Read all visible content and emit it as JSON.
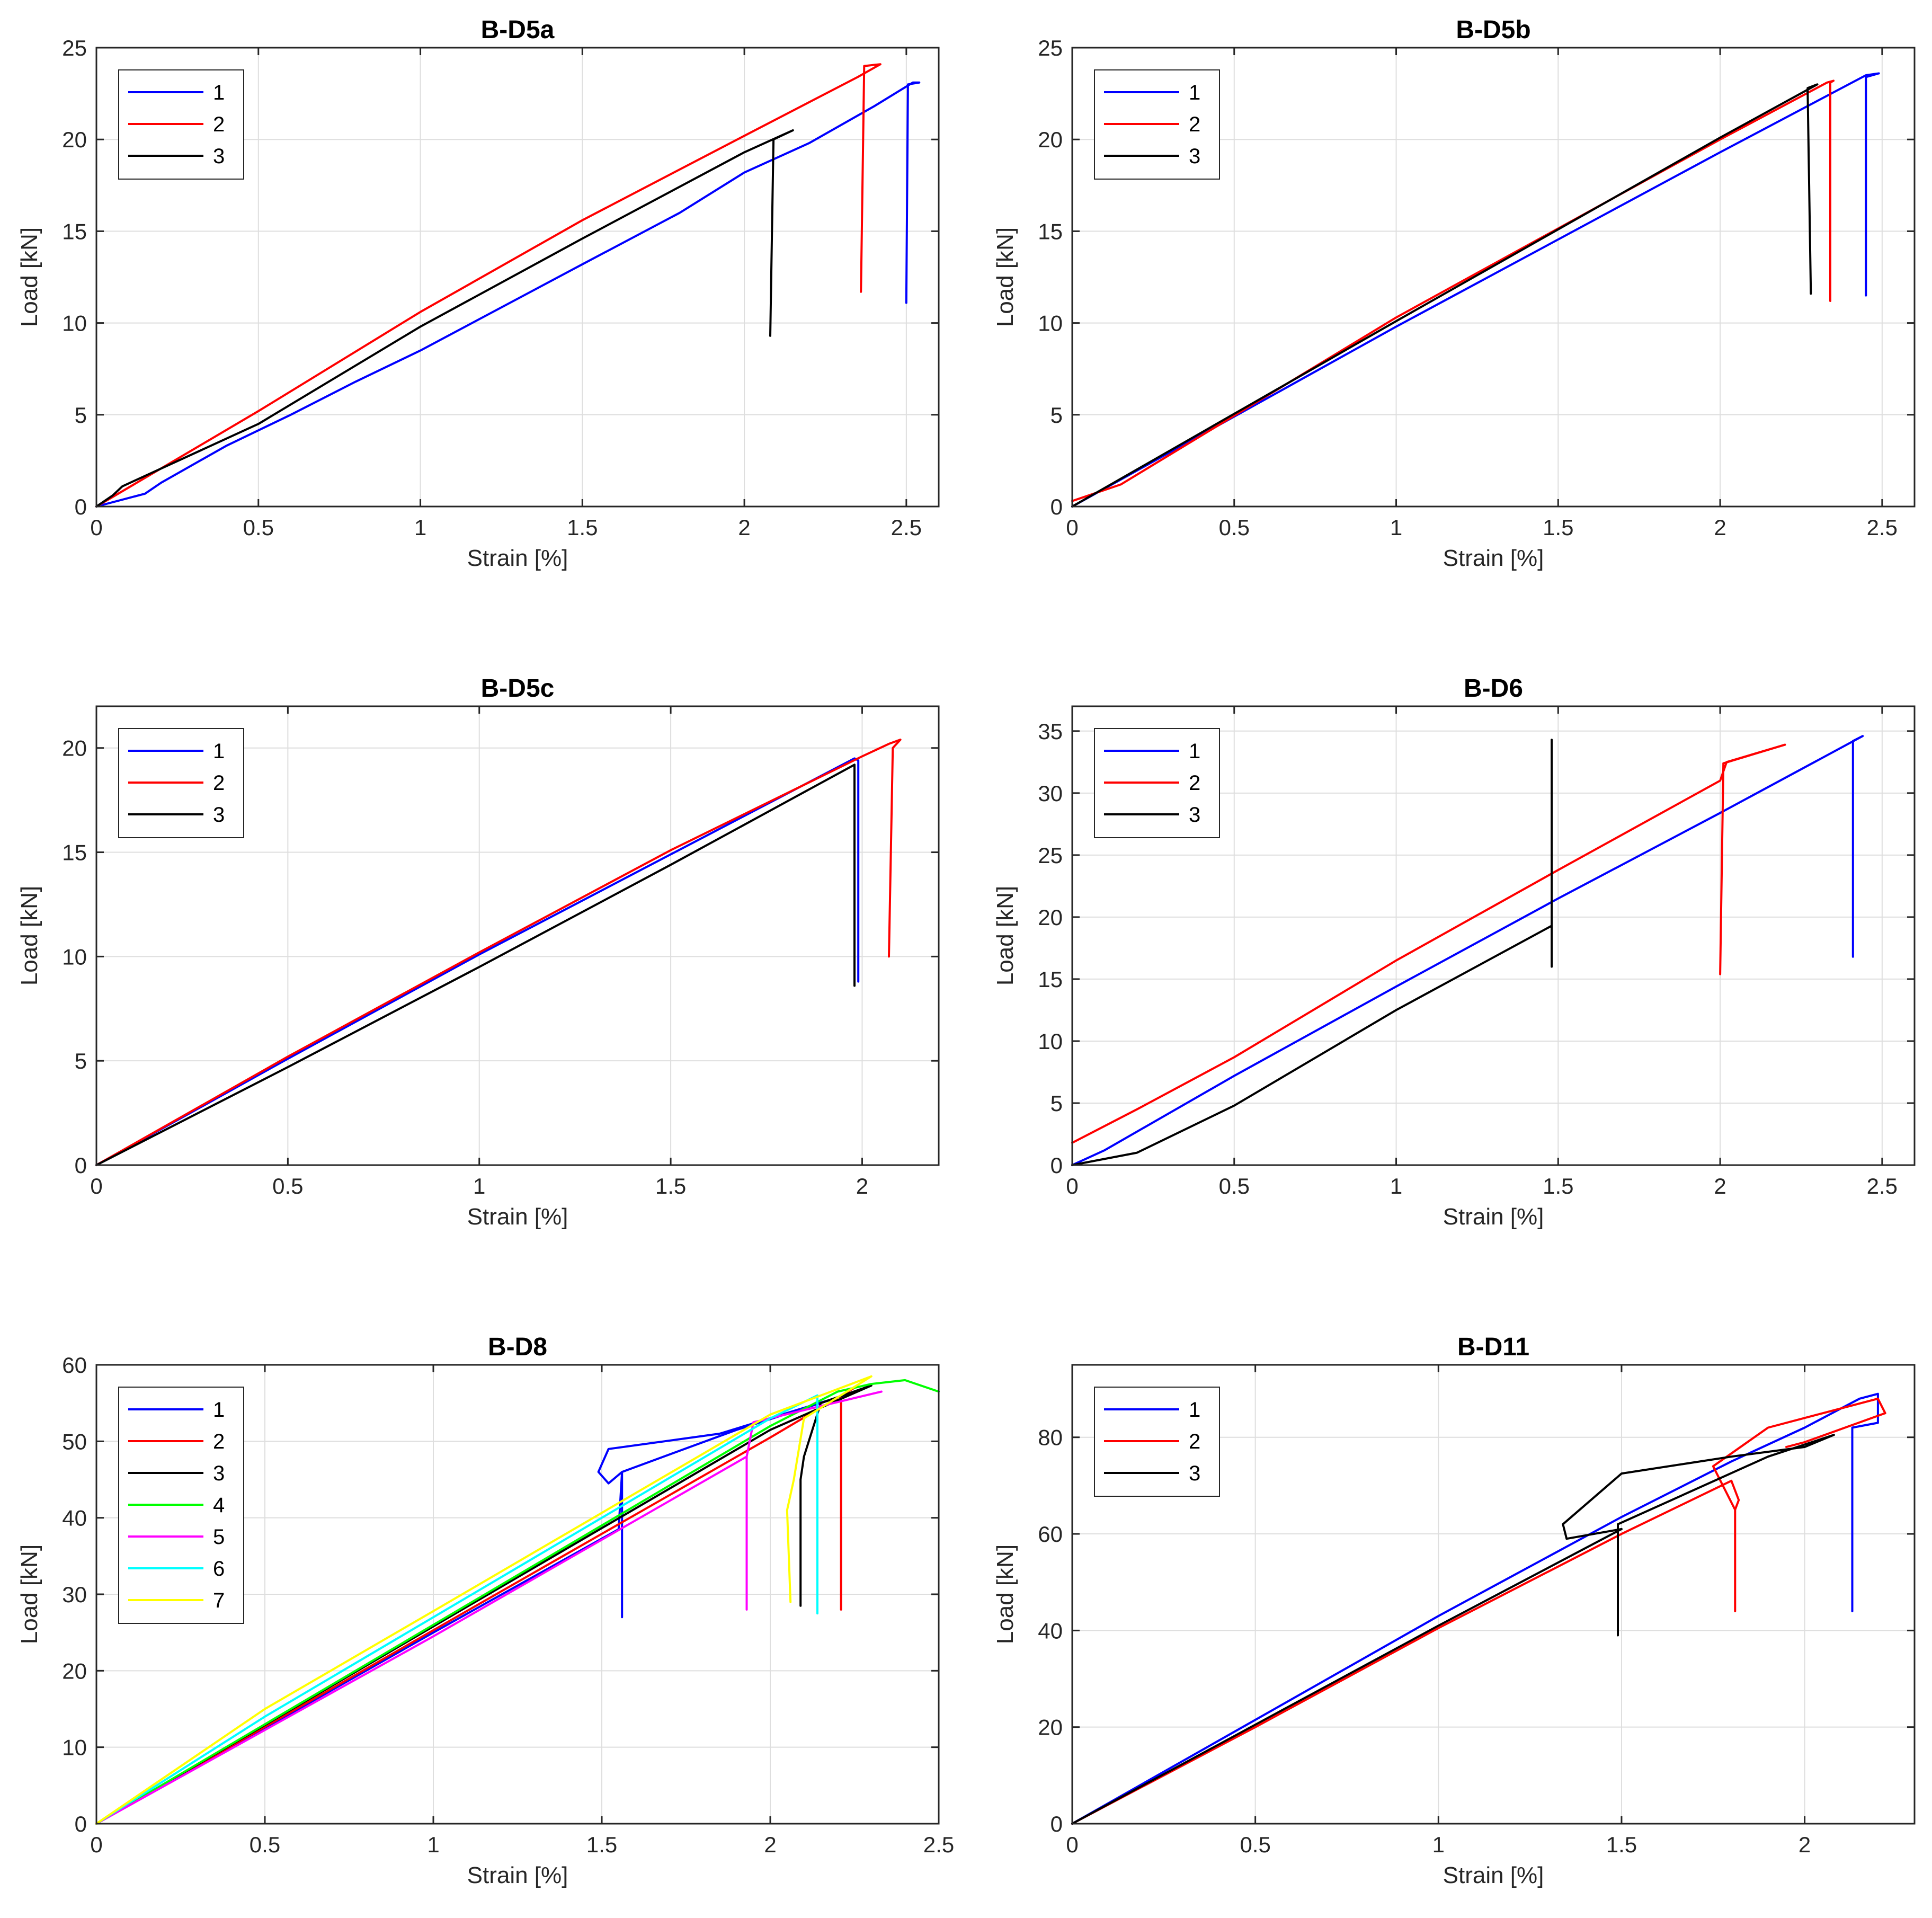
{
  "chart_data": [
    {
      "type": "line",
      "title": "B-D5a",
      "xlabel": "Strain [%]",
      "ylabel": "Load [kN]",
      "xlim": [
        0,
        2.6
      ],
      "ylim": [
        0,
        25
      ],
      "xticks": [
        0,
        0.5,
        1,
        1.5,
        2,
        2.5
      ],
      "xtick_labels": [
        "0",
        "0.5",
        "1",
        "1.5",
        "2",
        "2.5"
      ],
      "yticks": [
        0,
        5,
        10,
        15,
        20,
        25
      ],
      "ytick_labels": [
        "0",
        "5",
        "10",
        "15",
        "20",
        "25"
      ],
      "grid": true,
      "legend": "top-left",
      "series": [
        {
          "name": "1",
          "color": "#0000ff",
          "points": [
            [
              0,
              0
            ],
            [
              0.15,
              0.7
            ],
            [
              0.2,
              1.3
            ],
            [
              0.4,
              3.3
            ],
            [
              0.6,
              5
            ],
            [
              0.8,
              6.8
            ],
            [
              1,
              8.5
            ],
            [
              1.5,
              13.2
            ],
            [
              1.8,
              16
            ],
            [
              2.0,
              18.2
            ],
            [
              2.2,
              19.8
            ],
            [
              2.4,
              21.8
            ],
            [
              2.52,
              23.1
            ],
            [
              2.54,
              23.1
            ],
            [
              2.505,
              23
            ],
            [
              2.5,
              11.1
            ]
          ]
        },
        {
          "name": "2",
          "color": "#ff0000",
          "points": [
            [
              0,
              0
            ],
            [
              0.5,
              5.2
            ],
            [
              1,
              10.6
            ],
            [
              1.5,
              15.6
            ],
            [
              2,
              20.2
            ],
            [
              2.35,
              23.4
            ],
            [
              2.42,
              24.1
            ],
            [
              2.37,
              24
            ],
            [
              2.36,
              11.7
            ]
          ]
        },
        {
          "name": "3",
          "color": "#000000",
          "points": [
            [
              0,
              0
            ],
            [
              0.05,
              0.6
            ],
            [
              0.08,
              1.1
            ],
            [
              0.5,
              4.5
            ],
            [
              1,
              9.8
            ],
            [
              1.5,
              14.6
            ],
            [
              2.0,
              19.3
            ],
            [
              2.15,
              20.5
            ],
            [
              2.09,
              20
            ],
            [
              2.08,
              9.3
            ]
          ]
        }
      ]
    },
    {
      "type": "line",
      "title": "B-D5b",
      "xlabel": "Strain [%]",
      "ylabel": "Load [kN]",
      "xlim": [
        0,
        2.6
      ],
      "ylim": [
        0,
        25
      ],
      "xticks": [
        0,
        0.5,
        1,
        1.5,
        2,
        2.5
      ],
      "xtick_labels": [
        "0",
        "0.5",
        "1",
        "1.5",
        "2",
        "2.5"
      ],
      "yticks": [
        0,
        5,
        10,
        15,
        20,
        25
      ],
      "ytick_labels": [
        "0",
        "5",
        "10",
        "15",
        "20",
        "25"
      ],
      "grid": true,
      "legend": "top-left",
      "series": [
        {
          "name": "1",
          "color": "#0000ff",
          "points": [
            [
              0,
              0
            ],
            [
              1,
              9.8
            ],
            [
              2,
              19.3
            ],
            [
              2.45,
              23.5
            ],
            [
              2.49,
              23.6
            ],
            [
              2.45,
              23.4
            ],
            [
              2.45,
              11.5
            ]
          ]
        },
        {
          "name": "2",
          "color": "#ff0000",
          "points": [
            [
              0,
              0.3
            ],
            [
              0.15,
              1.2
            ],
            [
              1,
              10.3
            ],
            [
              2,
              20
            ],
            [
              2.33,
              23.1
            ],
            [
              2.35,
              23.2
            ],
            [
              2.34,
              23.1
            ],
            [
              2.34,
              11.2
            ]
          ]
        },
        {
          "name": "3",
          "color": "#000000",
          "points": [
            [
              0,
              0
            ],
            [
              1,
              10.1
            ],
            [
              2,
              20.1
            ],
            [
              2.3,
              23
            ],
            [
              2.27,
              22.8
            ],
            [
              2.28,
              11.6
            ]
          ]
        }
      ]
    },
    {
      "type": "line",
      "title": "B-D5c",
      "xlabel": "Strain [%]",
      "ylabel": "Load [kN]",
      "xlim": [
        0,
        2.2
      ],
      "ylim": [
        0,
        22
      ],
      "xticks": [
        0,
        0.5,
        1,
        1.5,
        2
      ],
      "xtick_labels": [
        "0",
        "0.5",
        "1",
        "1.5",
        "2"
      ],
      "yticks": [
        0,
        5,
        10,
        15,
        20
      ],
      "ytick_labels": [
        "0",
        "5",
        "10",
        "15",
        "20"
      ],
      "grid": true,
      "legend": "top-left",
      "series": [
        {
          "name": "1",
          "color": "#0000ff",
          "points": [
            [
              0,
              0
            ],
            [
              0.5,
              5.1
            ],
            [
              1,
              10.1
            ],
            [
              1.5,
              14.9
            ],
            [
              1.98,
              19.5
            ],
            [
              1.99,
              19.4
            ],
            [
              1.99,
              8.8
            ]
          ]
        },
        {
          "name": "2",
          "color": "#ff0000",
          "points": [
            [
              0,
              0
            ],
            [
              0.5,
              5.2
            ],
            [
              1,
              10.2
            ],
            [
              1.5,
              15.1
            ],
            [
              2.0,
              19.6
            ],
            [
              2.07,
              20.2
            ],
            [
              2.1,
              20.4
            ],
            [
              2.08,
              20
            ],
            [
              2.07,
              10
            ]
          ]
        },
        {
          "name": "3",
          "color": "#000000",
          "points": [
            [
              0,
              0
            ],
            [
              0.5,
              4.7
            ],
            [
              1,
              9.5
            ],
            [
              1.5,
              14.4
            ],
            [
              1.97,
              19.1
            ],
            [
              1.98,
              19.2
            ],
            [
              1.98,
              8.6
            ]
          ]
        }
      ]
    },
    {
      "type": "line",
      "title": "B-D6",
      "xlabel": "Strain [%]",
      "ylabel": "Load [kN]",
      "xlim": [
        0,
        2.6
      ],
      "ylim": [
        0,
        37
      ],
      "xticks": [
        0,
        0.5,
        1,
        1.5,
        2,
        2.5
      ],
      "xtick_labels": [
        "0",
        "0.5",
        "1",
        "1.5",
        "2",
        "2.5"
      ],
      "yticks": [
        0,
        5,
        10,
        15,
        20,
        25,
        30,
        35
      ],
      "ytick_labels": [
        "0",
        "5",
        "10",
        "15",
        "20",
        "25",
        "30",
        "35"
      ],
      "grid": true,
      "legend": "top-left",
      "series": [
        {
          "name": "1",
          "color": "#0000ff",
          "points": [
            [
              0,
              0
            ],
            [
              0.1,
              1.2
            ],
            [
              0.5,
              7.2
            ],
            [
              1,
              14.4
            ],
            [
              1.5,
              21.5
            ],
            [
              2,
              28.4
            ],
            [
              2.44,
              34.6
            ],
            [
              2.41,
              34.2
            ],
            [
              2.41,
              16.8
            ]
          ]
        },
        {
          "name": "2",
          "color": "#ff0000",
          "points": [
            [
              0,
              1.8
            ],
            [
              0.2,
              4.5
            ],
            [
              0.5,
              8.7
            ],
            [
              1,
              16.5
            ],
            [
              1.5,
              23.8
            ],
            [
              2,
              31
            ],
            [
              2.02,
              32.5
            ],
            [
              2.2,
              33.9
            ],
            [
              2.01,
              32.4
            ],
            [
              2,
              15.4
            ]
          ]
        },
        {
          "name": "3",
          "color": "#000000",
          "points": [
            [
              0,
              0
            ],
            [
              0.2,
              1
            ],
            [
              0.5,
              4.8
            ],
            [
              1,
              12.5
            ],
            [
              1.48,
              19.3
            ],
            [
              1.48,
              34.3
            ],
            [
              1.48,
              16
            ]
          ]
        }
      ]
    },
    {
      "type": "line",
      "title": "B-D8",
      "xlabel": "Strain [%]",
      "ylabel": "Load [kN]",
      "xlim": [
        0,
        2.5
      ],
      "ylim": [
        0,
        60
      ],
      "xticks": [
        0,
        0.5,
        1,
        1.5,
        2,
        2.5
      ],
      "xtick_labels": [
        "0",
        "0.5",
        "1",
        "1.5",
        "2",
        "2.5"
      ],
      "yticks": [
        0,
        10,
        20,
        30,
        40,
        50,
        60
      ],
      "ytick_labels": [
        "0",
        "10",
        "20",
        "30",
        "40",
        "50",
        "60"
      ],
      "grid": true,
      "legend": "top-left",
      "series": [
        {
          "name": "1",
          "color": "#0000ff",
          "points": [
            [
              0,
              0
            ],
            [
              1,
              25
            ],
            [
              1.55,
              38.5
            ],
            [
              1.56,
              46
            ],
            [
              1.52,
              44.5
            ],
            [
              1.49,
              46
            ],
            [
              1.52,
              49
            ],
            [
              1.85,
              51
            ],
            [
              2.22,
              56
            ],
            [
              1.9,
              51.5
            ],
            [
              1.56,
              46
            ],
            [
              1.56,
              27
            ]
          ]
        },
        {
          "name": "2",
          "color": "#ff0000",
          "points": [
            [
              0,
              0
            ],
            [
              1,
              25.3
            ],
            [
              2,
              50.5
            ],
            [
              2.25,
              57
            ],
            [
              2.21,
              56
            ],
            [
              2.21,
              28
            ]
          ]
        },
        {
          "name": "3",
          "color": "#000000",
          "points": [
            [
              0,
              0
            ],
            [
              1,
              25.8
            ],
            [
              2,
              51.5
            ],
            [
              2.3,
              57.3
            ],
            [
              2.15,
              55
            ],
            [
              2.1,
              48
            ],
            [
              2.09,
              45
            ],
            [
              2.09,
              28.5
            ]
          ]
        },
        {
          "name": "4",
          "color": "#00ff00",
          "points": [
            [
              0,
              0
            ],
            [
              1,
              26
            ],
            [
              2,
              52
            ],
            [
              2.2,
              56.5
            ],
            [
              2.3,
              57.5
            ],
            [
              2.4,
              58
            ],
            [
              2.5,
              56.5
            ]
          ]
        },
        {
          "name": "5",
          "color": "#ff00ff",
          "points": [
            [
              0,
              0
            ],
            [
              1,
              24.5
            ],
            [
              1.93,
              48
            ],
            [
              1.95,
              52.5
            ],
            [
              2.33,
              56.5
            ],
            [
              1.95,
              52.5
            ],
            [
              1.93,
              48
            ],
            [
              1.93,
              28
            ]
          ]
        },
        {
          "name": "6",
          "color": "#00ffff",
          "points": [
            [
              0,
              0
            ],
            [
              0.5,
              14
            ],
            [
              1,
              27
            ],
            [
              2,
              53
            ],
            [
              2.14,
              56
            ],
            [
              2.14,
              27.5
            ]
          ]
        },
        {
          "name": "7",
          "color": "#ffff00",
          "points": [
            [
              0,
              0
            ],
            [
              0.1,
              3
            ],
            [
              0.5,
              15
            ],
            [
              1,
              27.8
            ],
            [
              2,
              53.5
            ],
            [
              2.3,
              58.5
            ],
            [
              2.1,
              53
            ],
            [
              2.07,
              45
            ],
            [
              2.05,
              41
            ],
            [
              2.06,
              29
            ]
          ]
        }
      ]
    },
    {
      "type": "line",
      "title": "B-D11",
      "xlabel": "Strain [%]",
      "ylabel": "Load [kN]",
      "xlim": [
        0,
        2.3
      ],
      "ylim": [
        0,
        95
      ],
      "xticks": [
        0,
        0.5,
        1,
        1.5,
        2
      ],
      "xtick_labels": [
        "0",
        "0.5",
        "1",
        "1.5",
        "2"
      ],
      "yticks": [
        0,
        20,
        40,
        60,
        80
      ],
      "ytick_labels": [
        "0",
        "20",
        "40",
        "60",
        "80"
      ],
      "grid": true,
      "legend": "top-left",
      "series": [
        {
          "name": "1",
          "color": "#0000ff",
          "points": [
            [
              0,
              0
            ],
            [
              0.5,
              21.5
            ],
            [
              1,
              43
            ],
            [
              1.5,
              63.5
            ],
            [
              1.8,
              75
            ],
            [
              2.0,
              82
            ],
            [
              2.15,
              88
            ],
            [
              2.2,
              89
            ],
            [
              2.2,
              83
            ],
            [
              2.13,
              82
            ],
            [
              2.13,
              44
            ]
          ]
        },
        {
          "name": "2",
          "color": "#ff0000",
          "points": [
            [
              0,
              0
            ],
            [
              0.5,
              20
            ],
            [
              1,
              40.5
            ],
            [
              1.5,
              60
            ],
            [
              1.8,
              71
            ],
            [
              1.82,
              67
            ],
            [
              1.81,
              65
            ],
            [
              1.81,
              44
            ],
            [
              1.81,
              65
            ],
            [
              1.75,
              74
            ],
            [
              1.9,
              82
            ],
            [
              2.2,
              88
            ],
            [
              2.22,
              85
            ],
            [
              2,
              79
            ],
            [
              1.95,
              78
            ]
          ]
        },
        {
          "name": "3",
          "color": "#000000",
          "points": [
            [
              0,
              0
            ],
            [
              0.5,
              20.5
            ],
            [
              1,
              41
            ],
            [
              1.5,
              61
            ],
            [
              1.35,
              59
            ],
            [
              1.34,
              62
            ],
            [
              1.5,
              72.5
            ],
            [
              1.8,
              76
            ],
            [
              2.0,
              78
            ],
            [
              2.08,
              80.5
            ],
            [
              1.9,
              76
            ],
            [
              1.49,
              62
            ],
            [
              1.49,
              39
            ]
          ]
        }
      ]
    }
  ]
}
